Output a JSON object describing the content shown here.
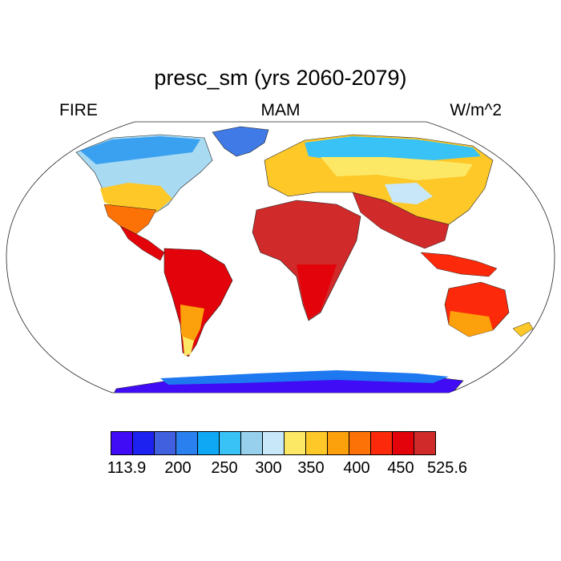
{
  "title": "presc_sm (yrs 2060-2079)",
  "left_label": "FIRE",
  "center_label": "MAM",
  "right_label": "W/m^2",
  "colorbar": {
    "colors": [
      "#3f0cf5",
      "#1e22f0",
      "#4060e0",
      "#2b80f0",
      "#0fa8f5",
      "#38c2f5",
      "#96d0ec",
      "#c8e8fa",
      "#fde865",
      "#fdc828",
      "#fca10c",
      "#fd7206",
      "#fc2a0a",
      "#e2040a",
      "#d02a2a"
    ],
    "labels": [
      "113.9",
      "200",
      "250",
      "300",
      "350",
      "400",
      "450",
      "525.6"
    ]
  }
}
